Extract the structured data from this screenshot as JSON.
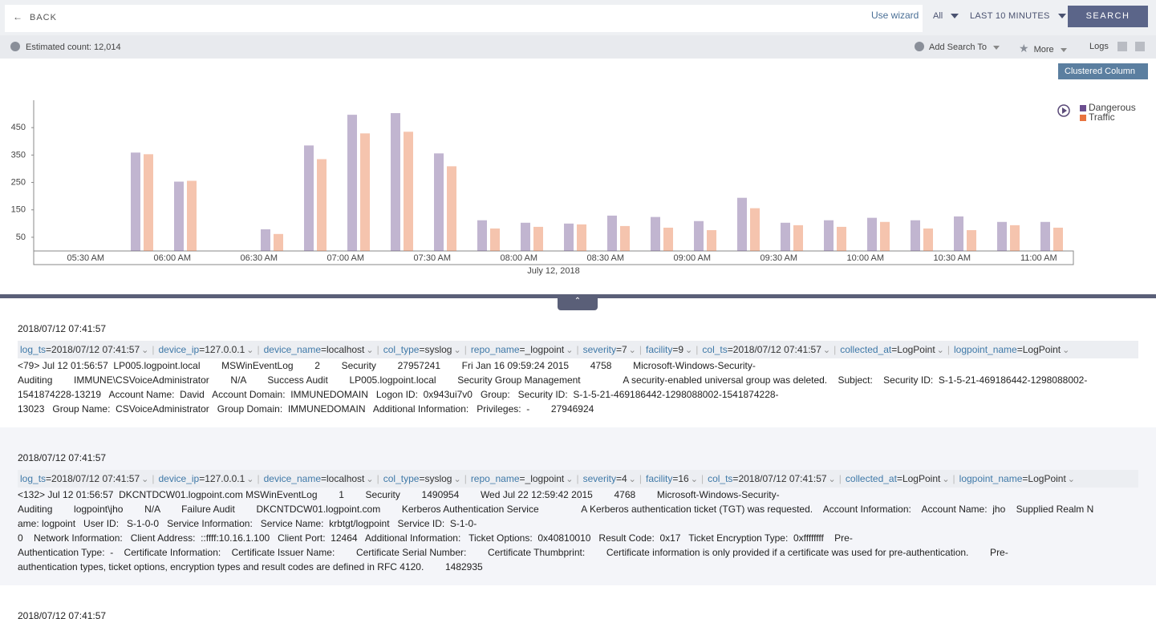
{
  "toolbar": {
    "back": "BACK",
    "wizard": "Use wizard",
    "repo": "All",
    "time_range": "LAST 10 MINUTES",
    "search": "SEARCH"
  },
  "status": {
    "count": "Estimated count: 12,014",
    "add_search": "Add Search To",
    "more": "More",
    "logs": "Logs"
  },
  "chart_selector": "Clustered Column",
  "chart_data": {
    "type": "bar",
    "categories": [
      null,
      null,
      null,
      null,
      null,
      null,
      null,
      null,
      null,
      null,
      null,
      null,
      null,
      null,
      null,
      null,
      null,
      null,
      null,
      null,
      null,
      null,
      null,
      null
    ],
    "series": [
      {
        "name": "Dangerous",
        "color": "#6b4e8f",
        "values": [
          null,
          null,
          359,
          253,
          null,
          79,
          385,
          497,
          503,
          356,
          112,
          103,
          100,
          129,
          124,
          109,
          194,
          103,
          112,
          121,
          112,
          126,
          106,
          106
        ]
      },
      {
        "name": "Traffic",
        "color": "#e8733e",
        "values": [
          null,
          null,
          353,
          256,
          null,
          62,
          335,
          429,
          435,
          309,
          82,
          88,
          97,
          91,
          85,
          76,
          156,
          94,
          88,
          106,
          82,
          76,
          94,
          85
        ]
      }
    ],
    "x_tick_labels": [
      "05:30 AM",
      "06:00 AM",
      "06:30 AM",
      "07:00 AM",
      "07:30 AM",
      "08:00 AM",
      "08:30 AM",
      "09:00 AM",
      "09:30 AM",
      "10:00 AM",
      "10:30 AM",
      "11:00 AM"
    ],
    "x_label": "July 12, 2018",
    "ylim": [
      0,
      550
    ],
    "yticks": [
      50,
      150,
      250,
      350,
      450
    ],
    "legend": "top-right",
    "grid": false
  },
  "log_entries": [
    {
      "timestamp": "2018/07/12 07:41:57",
      "fields": [
        {
          "key": "log_ts",
          "value": "2018/07/12 07:41:57"
        },
        {
          "key": "device_ip",
          "value": "127.0.0.1"
        },
        {
          "key": "device_name",
          "value": "localhost"
        },
        {
          "key": "col_type",
          "value": "syslog"
        },
        {
          "key": "repo_name",
          "value": "_logpoint"
        },
        {
          "key": "severity",
          "value": "7"
        },
        {
          "key": "facility",
          "value": "9"
        },
        {
          "key": "col_ts",
          "value": "2018/07/12 07:41:57"
        },
        {
          "key": "collected_at",
          "value": "LogPoint"
        },
        {
          "key": "logpoint_name",
          "value": "LogPoint"
        }
      ],
      "message_lines": [
        "<79> Jul 12 01:56:57  LP005.logpoint.local        MSWinEventLog        2        Security        27957241        Fri Jan 16 09:59:24 2015        4758        Microsoft-Windows-Security-",
        "Auditing        IMMUNE\\CSVoiceAdministrator        N/A        Success Audit        LP005.logpoint.local        Security Group Management                A security-enabled universal group was deleted.    Subject:    Security ID:  S-1-5-21-469186442-1298088002-",
        "1541874228-13219   Account Name:  David   Account Domain:  IMMUNEDOMAIN   Logon ID:  0x943ui7v0   Group:   Security ID:  S-1-5-21-469186442-1298088002-1541874228-",
        "13023   Group Name:  CSVoiceAdministrator   Group Domain:  IMMUNEDOMAIN   Additional Information:   Privileges:  -        27946924"
      ]
    },
    {
      "timestamp": "2018/07/12 07:41:57",
      "fields": [
        {
          "key": "log_ts",
          "value": "2018/07/12 07:41:57"
        },
        {
          "key": "device_ip",
          "value": "127.0.0.1"
        },
        {
          "key": "device_name",
          "value": "localhost"
        },
        {
          "key": "col_type",
          "value": "syslog"
        },
        {
          "key": "repo_name",
          "value": "_logpoint"
        },
        {
          "key": "severity",
          "value": "4"
        },
        {
          "key": "facility",
          "value": "16"
        },
        {
          "key": "col_ts",
          "value": "2018/07/12 07:41:57"
        },
        {
          "key": "collected_at",
          "value": "LogPoint"
        },
        {
          "key": "logpoint_name",
          "value": "LogPoint"
        }
      ],
      "message_lines": [
        "<132> Jul 12 01:56:57  DKCNTDCW01.logpoint.com MSWinEventLog        1        Security        1490954        Wed Jul 22 12:59:42 2015        4768        Microsoft-Windows-Security-",
        "Auditing        logpoint\\jho        N/A        Failure Audit        DKCNTDCW01.logpoint.com        Kerberos Authentication Service                A Kerberos authentication ticket (TGT) was requested.    Account Information:    Account Name:  jho    Supplied Realm N",
        "ame: logpoint   User ID:   S-1-0-0   Service Information:   Service Name:  krbtgt/logpoint   Service ID:  S-1-0-",
        "0    Network Information:   Client Address:  ::ffff:10.16.1.100   Client Port:  12464   Additional Information:   Ticket Options:  0x40810010   Result Code:  0x17   Ticket Encryption Type:  0xffffffff    Pre-",
        "Authentication Type:  -    Certificate Information:    Certificate Issuer Name:        Certificate Serial Number:        Certificate Thumbprint:        Certificate information is only provided if a certificate was used for pre-authentication.        Pre-",
        "authentication types, ticket options, encryption types and result codes are defined in RFC 4120.        1482935"
      ]
    },
    {
      "timestamp": "2018/07/12 07:41:57"
    }
  ]
}
